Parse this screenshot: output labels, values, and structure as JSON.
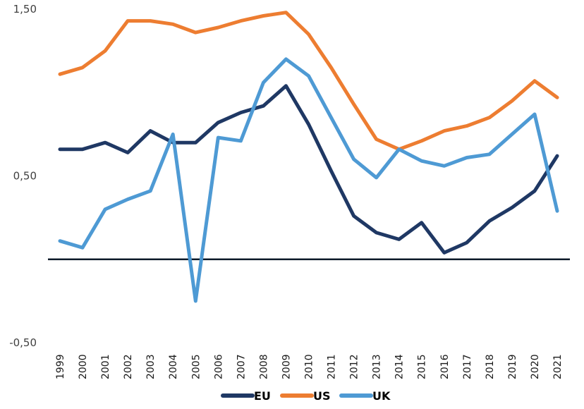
{
  "chart_data": {
    "type": "line",
    "title": "",
    "xlabel": "",
    "ylabel": "",
    "ylim": [
      -0.5,
      1.5
    ],
    "yticks": [
      "1,50",
      "0,50",
      "-0,50"
    ],
    "ytick_values": [
      1.5,
      0.5,
      -0.5
    ],
    "grid": false,
    "legend_position": "bottom",
    "x": [
      "1999",
      "2000",
      "2001",
      "2002",
      "2003",
      "2004",
      "2005",
      "2006",
      "2007",
      "2008",
      "2009",
      "2010",
      "2011",
      "2012",
      "2013",
      "2014",
      "2015",
      "2016",
      "2017",
      "2018",
      "2019",
      "2020",
      "2021"
    ],
    "series": [
      {
        "name": "EU",
        "color": "#1f3864",
        "values": [
          0.66,
          0.66,
          0.7,
          0.64,
          0.77,
          0.7,
          0.7,
          0.82,
          0.88,
          0.92,
          1.04,
          0.81,
          0.53,
          0.26,
          0.16,
          0.12,
          0.22,
          0.04,
          0.1,
          0.23,
          0.31,
          0.41,
          0.62
        ]
      },
      {
        "name": "US",
        "color": "#ed7d31",
        "values": [
          1.11,
          1.15,
          1.25,
          1.43,
          1.43,
          1.41,
          1.36,
          1.39,
          1.43,
          1.46,
          1.48,
          1.35,
          1.15,
          0.93,
          0.72,
          0.66,
          0.71,
          0.77,
          0.8,
          0.85,
          0.95,
          1.07,
          0.97
        ]
      },
      {
        "name": "UK",
        "color": "#4e9ad4",
        "values": [
          0.11,
          0.07,
          0.3,
          0.36,
          0.41,
          0.75,
          -0.25,
          0.73,
          0.71,
          1.06,
          1.2,
          1.1,
          0.85,
          0.6,
          0.49,
          0.66,
          0.59,
          0.56,
          0.61,
          0.63,
          0.75,
          0.87,
          0.29
        ]
      }
    ],
    "zero_line_color": "#0d1b2a"
  }
}
